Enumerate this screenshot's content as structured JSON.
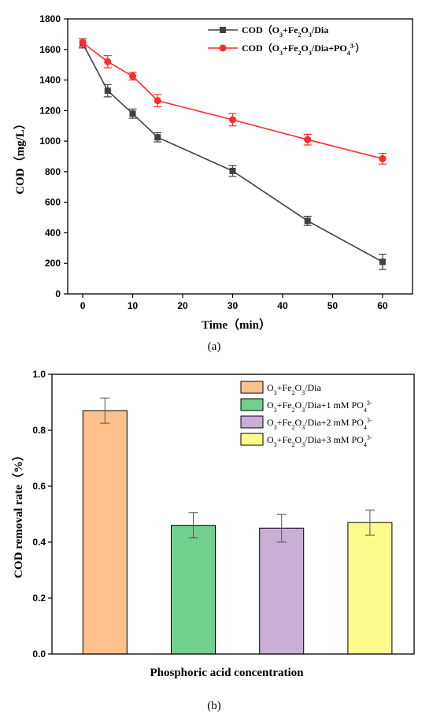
{
  "chart_data": [
    {
      "type": "line",
      "caption": "(a)",
      "xlabel": "Time（min）",
      "ylabel": "COD（mg/L）",
      "xlim": [
        -3,
        66
      ],
      "ylim": [
        0,
        1800
      ],
      "xticks": [
        0,
        10,
        20,
        30,
        40,
        50,
        60
      ],
      "yticks": [
        0,
        200,
        400,
        600,
        800,
        1000,
        1200,
        1400,
        1600,
        1800
      ],
      "x": [
        0,
        5,
        10,
        15,
        30,
        45,
        60
      ],
      "legend_position": "top-right",
      "series": [
        {
          "name": "COD（O3+Fe2O3/Dia）",
          "name_parts": [
            {
              "t": "COD（O"
            },
            {
              "t": "3",
              "sub": true
            },
            {
              "t": "+Fe"
            },
            {
              "t": "2",
              "sub": true
            },
            {
              "t": "O"
            },
            {
              "t": "3",
              "sub": true
            },
            {
              "t": "/Dia"
            }
          ],
          "color": "#404040",
          "marker": "square",
          "values": [
            1640,
            1330,
            1180,
            1025,
            805,
            478,
            210
          ],
          "errors": [
            30,
            40,
            30,
            30,
            35,
            30,
            50
          ]
        },
        {
          "name": "COD（O3+Fe2O3/Dia+PO4 3-）",
          "name_parts": [
            {
              "t": "COD（O"
            },
            {
              "t": "3",
              "sub": true
            },
            {
              "t": "+Fe"
            },
            {
              "t": "2",
              "sub": true
            },
            {
              "t": "O"
            },
            {
              "t": "3",
              "sub": true
            },
            {
              "t": "/Dia+PO"
            },
            {
              "t": "4",
              "sub": true
            },
            {
              "t": "3-",
              "sup": true
            },
            {
              "t": "）"
            }
          ],
          "color": "#ff2a2a",
          "marker": "circle",
          "values": [
            1645,
            1520,
            1425,
            1265,
            1140,
            1010,
            885
          ],
          "errors": [
            25,
            40,
            25,
            40,
            40,
            35,
            35
          ]
        }
      ]
    },
    {
      "type": "bar",
      "caption": "(b)",
      "xlabel": "Phosphoric acid concentration",
      "ylabel": "COD removal rate（%）",
      "ylim": [
        0,
        1.0
      ],
      "yticks": [
        0.0,
        0.2,
        0.4,
        0.6,
        0.8,
        1.0
      ],
      "legend_position": "top-right",
      "categories": [
        "O3+Fe2O3/Dia",
        "O3+Fe2O3/Dia+1 mM PO4 3-",
        "O3+Fe2O3/Dia+2 mM PO4 3-",
        "O3+Fe2O3/Dia+3 mM PO4 3-"
      ],
      "series": [
        {
          "values": [
            0.87,
            0.46,
            0.45,
            0.47
          ],
          "errors": [
            0.045,
            0.045,
            0.05,
            0.045
          ],
          "colors": [
            "#ffc08c",
            "#72d08f",
            "#c9aed6",
            "#fbfa8c"
          ]
        }
      ],
      "legend": [
        {
          "color": "#ffc08c",
          "name_parts": [
            {
              "t": "O"
            },
            {
              "t": "3",
              "sub": true
            },
            {
              "t": "+Fe"
            },
            {
              "t": "2",
              "sub": true
            },
            {
              "t": "O"
            },
            {
              "t": "3",
              "sub": true
            },
            {
              "t": "/Dia"
            }
          ]
        },
        {
          "color": "#72d08f",
          "name_parts": [
            {
              "t": "O"
            },
            {
              "t": "3",
              "sub": true
            },
            {
              "t": "+Fe"
            },
            {
              "t": "2",
              "sub": true
            },
            {
              "t": "O"
            },
            {
              "t": "3",
              "sub": true
            },
            {
              "t": "/Dia+1 mM PO"
            },
            {
              "t": "4",
              "sub": true
            },
            {
              "t": "3-",
              "sup": true
            }
          ]
        },
        {
          "color": "#c9aed6",
          "name_parts": [
            {
              "t": "O"
            },
            {
              "t": "3",
              "sub": true
            },
            {
              "t": "+Fe"
            },
            {
              "t": "2",
              "sub": true
            },
            {
              "t": "O"
            },
            {
              "t": "3",
              "sub": true
            },
            {
              "t": "/Dia+2 mM PO"
            },
            {
              "t": "4",
              "sub": true
            },
            {
              "t": "3-",
              "sup": true
            }
          ]
        },
        {
          "color": "#fbfa8c",
          "name_parts": [
            {
              "t": "O"
            },
            {
              "t": "3",
              "sub": true
            },
            {
              "t": "+Fe"
            },
            {
              "t": "2",
              "sub": true
            },
            {
              "t": "O"
            },
            {
              "t": "3",
              "sub": true
            },
            {
              "t": "/Dia+3 mM PO"
            },
            {
              "t": "4",
              "sub": true
            },
            {
              "t": "3-",
              "sup": true
            }
          ]
        }
      ]
    }
  ]
}
